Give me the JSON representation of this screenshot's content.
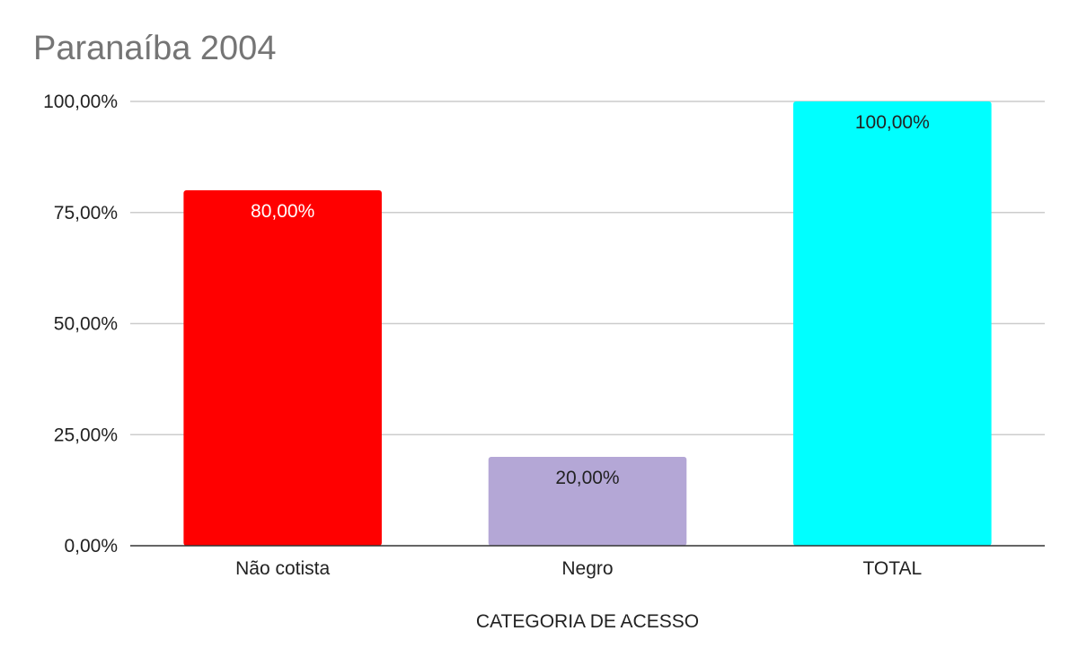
{
  "chart_data": {
    "type": "bar",
    "title": "Paranaíba 2004",
    "xlabel": "CATEGORIA DE ACESSO",
    "ylabel": "",
    "categories": [
      "Não cotista",
      "Negro",
      "TOTAL"
    ],
    "values": [
      80,
      20,
      100
    ],
    "value_labels": [
      "80,00%",
      "20,00%",
      "100,00%"
    ],
    "bar_colors": [
      "#ff0000",
      "#b4a7d6",
      "#00ffff"
    ],
    "label_colors": [
      "#ffffff",
      "#222222",
      "#222222"
    ],
    "ylim": [
      0,
      100
    ],
    "yticks": [
      0,
      25,
      50,
      75,
      100
    ],
    "ytick_labels": [
      "0,00%",
      "25,00%",
      "50,00%",
      "75,00%",
      "100,00%"
    ],
    "grid": true,
    "legend": "none"
  }
}
